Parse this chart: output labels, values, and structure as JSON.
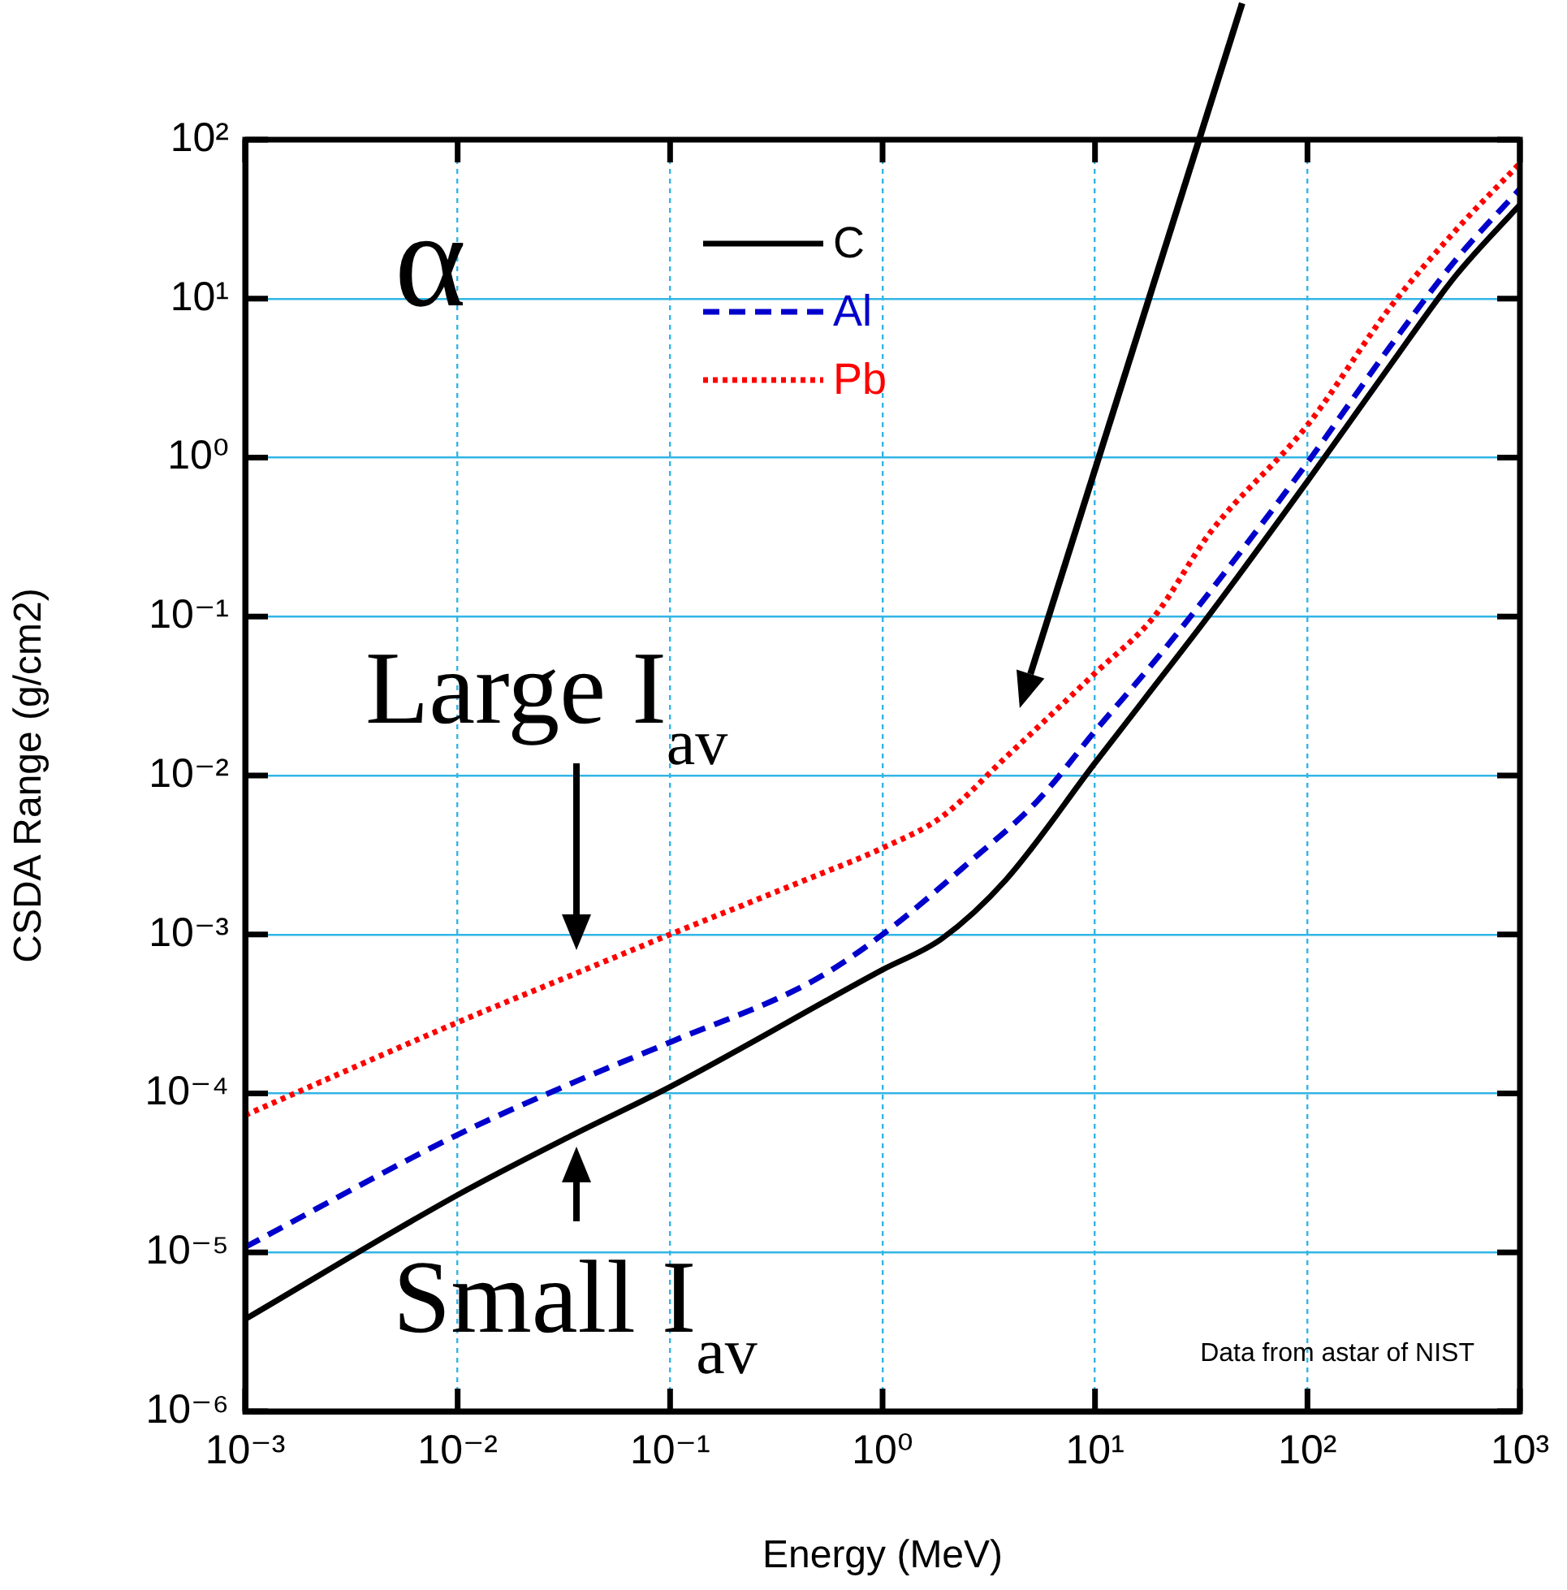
{
  "chart_data": {
    "type": "line",
    "xlabel": "Energy (MeV)",
    "ylabel": "CSDA Range (g/cm2)",
    "log": "xy",
    "grid": true,
    "legend": "top",
    "marker": "none",
    "xlim": [
      0.001,
      1000
    ],
    "ylim": [
      1e-06,
      100
    ],
    "xticks": [
      {
        "value": 0.001,
        "label": "10⁻³"
      },
      {
        "value": 0.01,
        "label": "10⁻²"
      },
      {
        "value": 0.1,
        "label": "10⁻¹"
      },
      {
        "value": 1,
        "label": "10⁰"
      },
      {
        "value": 10,
        "label": "10¹"
      },
      {
        "value": 100,
        "label": "10²"
      },
      {
        "value": 1000,
        "label": "10³"
      }
    ],
    "yticks": [
      {
        "value": 1e-06,
        "label": "10⁻⁶"
      },
      {
        "value": 1e-05,
        "label": "10⁻⁵"
      },
      {
        "value": 0.0001,
        "label": "10⁻⁴"
      },
      {
        "value": 0.001,
        "label": "10⁻³"
      },
      {
        "value": 0.01,
        "label": "10⁻²"
      },
      {
        "value": 0.1,
        "label": "10⁻¹"
      },
      {
        "value": 1,
        "label": "10⁰"
      },
      {
        "value": 10,
        "label": "10¹"
      },
      {
        "value": 100,
        "label": "10²"
      }
    ],
    "series": [
      {
        "name": "C",
        "color": "#000000",
        "line_style": "solid",
        "x": [
          0.001,
          0.01,
          0.035,
          0.1,
          1,
          1.9,
          3.8,
          10,
          17,
          35,
          100,
          245,
          500,
          1000
        ],
        "values": [
          3.8e-06,
          2.3e-05,
          5.5e-05,
          0.00011,
          0.0006,
          0.00094,
          0.0022,
          0.012,
          0.03,
          0.105,
          0.71,
          3.8,
          14,
          39
        ]
      },
      {
        "name": "Al",
        "color": "#0000cc",
        "line_style": "dashed",
        "x": [
          0.001,
          0.01,
          0.035,
          0.1,
          0.47,
          1,
          2.6,
          5.4,
          10,
          19,
          35,
          100,
          245,
          500,
          1000
        ],
        "values": [
          1.08e-05,
          5.5e-05,
          0.000117,
          0.00021,
          0.00051,
          0.001,
          0.0029,
          0.007,
          0.019,
          0.052,
          0.145,
          0.93,
          5,
          17.6,
          49
        ]
      },
      {
        "name": "Pb",
        "color": "#ff0000",
        "line_style": "dotted",
        "x": [
          0.001,
          0.01,
          0.035,
          0.1,
          0.47,
          1,
          1.9,
          3.8,
          10,
          19,
          35,
          100,
          245,
          500,
          1000
        ],
        "values": [
          7.3e-05,
          0.00028,
          0.00056,
          0.001,
          0.0023,
          0.0035,
          0.0055,
          0.013,
          0.044,
          0.1,
          0.34,
          1.6,
          8.8,
          27,
          71
        ]
      }
    ],
    "annotations": [
      "α",
      "Large I$_{av}$",
      "Small I$_{av}$",
      "Data from astar of NIST"
    ]
  }
}
